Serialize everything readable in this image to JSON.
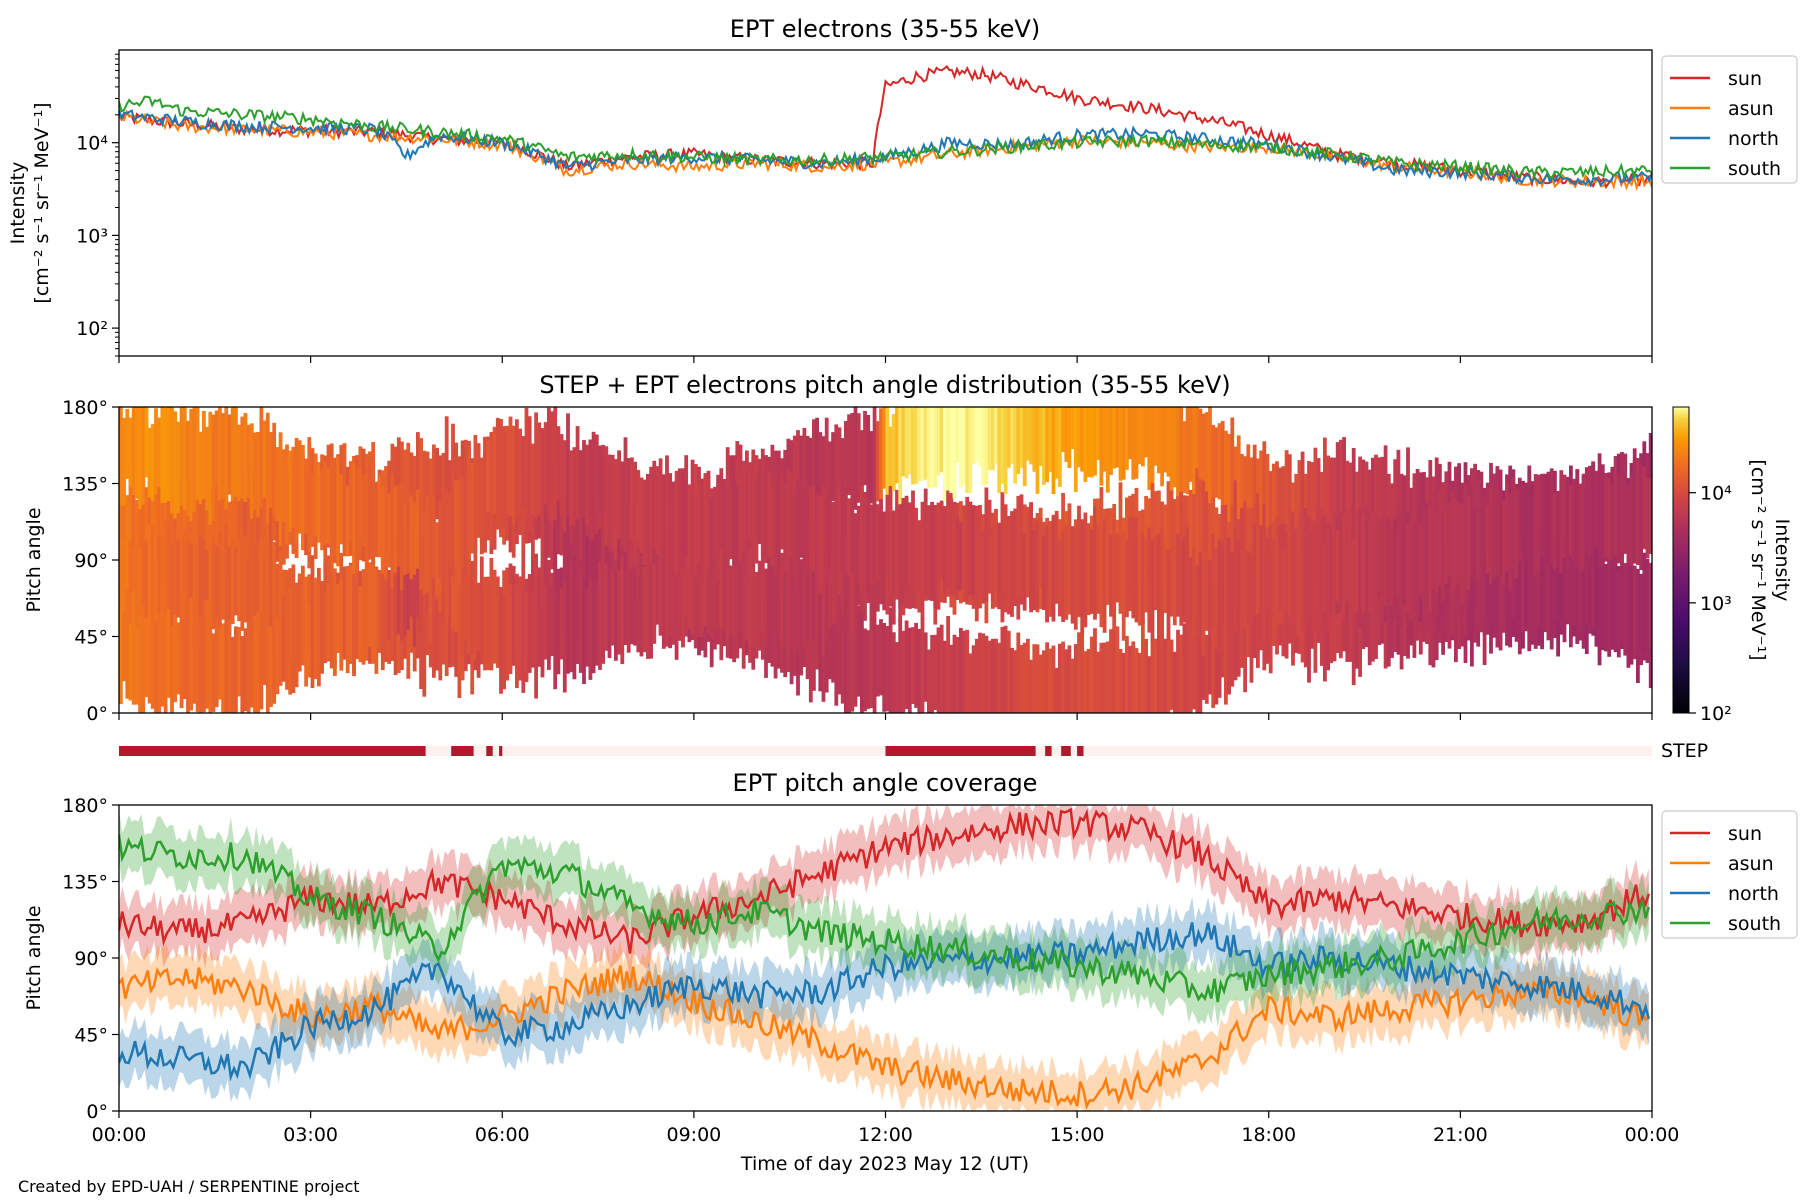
{
  "footer": "Created by EPD-UAH / SERPENTINE project",
  "colors": {
    "sun": "#d62728",
    "asun": "#ff7f0e",
    "north": "#1f77b4",
    "south": "#2ca02c",
    "step_on": "#b2182b",
    "step_off": "#fdf0ee"
  },
  "chart_data": [
    {
      "type": "line",
      "title": "EPT electrons (35-55 keV)",
      "ylabel_line1": "Intensity",
      "ylabel_line2": "[cm⁻² s⁻¹ sr⁻¹ MeV⁻¹]",
      "yscale": "log",
      "ylim": [
        50,
        100000
      ],
      "y_ticks": [
        100,
        1000,
        10000
      ],
      "y_tick_labels": [
        "10²",
        "10³",
        "10⁴"
      ],
      "legend_position": "outside-right",
      "series": [
        {
          "name": "sun",
          "x": [
            0,
            1,
            2,
            3,
            4,
            5,
            6,
            7,
            8,
            9,
            10,
            11,
            11.8,
            11.9,
            12,
            12.5,
            13,
            13.5,
            14,
            14.5,
            15,
            16,
            17,
            18,
            19,
            20,
            21,
            22,
            23,
            24
          ],
          "y": [
            19000,
            16000,
            14000,
            13500,
            13000,
            11000,
            10000,
            5500,
            7000,
            7500,
            6500,
            6000,
            6000,
            16000,
            40000,
            52000,
            58000,
            55000,
            45000,
            38000,
            30000,
            24000,
            18000,
            12000,
            7500,
            6000,
            5000,
            4200,
            3800,
            4000
          ]
        },
        {
          "name": "asun",
          "x": [
            0,
            1,
            2,
            3,
            4,
            5,
            6,
            7,
            8,
            9,
            10,
            11,
            12,
            13,
            14,
            15,
            16,
            17,
            18,
            19,
            20,
            21,
            22,
            23,
            24
          ],
          "y": [
            19000,
            15000,
            14000,
            13000,
            12000,
            11000,
            9500,
            5000,
            6000,
            5500,
            6000,
            5500,
            6000,
            7500,
            9000,
            10500,
            10000,
            9000,
            9000,
            7000,
            5500,
            4800,
            4000,
            3800,
            3800
          ]
        },
        {
          "name": "north",
          "x": [
            0,
            1,
            2,
            3,
            4,
            4.5,
            5,
            6,
            7,
            8,
            9,
            10,
            11,
            12,
            12.8,
            13,
            14,
            15,
            16,
            17,
            18,
            19,
            20,
            21,
            22,
            23,
            24
          ],
          "y": [
            20000,
            17000,
            15000,
            14500,
            14000,
            7000,
            12000,
            10000,
            5500,
            6500,
            7000,
            6500,
            6000,
            7000,
            9000,
            10000,
            9500,
            12000,
            12500,
            11000,
            9500,
            7000,
            5000,
            4800,
            4200,
            4000,
            4200
          ]
        },
        {
          "name": "south",
          "x": [
            0,
            0.5,
            1,
            2,
            3,
            4,
            5,
            6,
            7,
            8,
            9,
            10,
            11,
            12,
            13,
            14,
            15,
            16,
            17,
            18,
            19,
            20,
            21,
            22,
            23,
            24
          ],
          "y": [
            25000,
            28000,
            22000,
            20000,
            18000,
            15000,
            13000,
            11000,
            7000,
            7500,
            7000,
            6500,
            6500,
            7000,
            8000,
            9000,
            10000,
            10500,
            9500,
            9000,
            7500,
            6000,
            5500,
            4800,
            4800,
            5000
          ]
        }
      ]
    },
    {
      "type": "heatmap",
      "title": "STEP + EPT electrons pitch angle distribution (35-55 keV)",
      "ylabel": "Pitch angle",
      "ylim": [
        0,
        180
      ],
      "y_ticks": [
        0,
        45,
        90,
        135,
        180
      ],
      "y_tick_labels": [
        "0°",
        "45°",
        "90°",
        "135°",
        "180°"
      ],
      "colorbar": {
        "label_line1": "Intensity",
        "label_line2": "[cm⁻² s⁻¹ sr⁻¹ MeV⁻¹]",
        "scale": "log",
        "range": [
          100,
          60000
        ],
        "ticks": [
          100,
          1000,
          10000
        ],
        "tick_labels": [
          "10²",
          "10³",
          "10⁴"
        ],
        "colormap": "inferno"
      }
    },
    {
      "type": "timeline",
      "label": "STEP",
      "on_intervals_hours": [
        [
          0,
          4.8
        ],
        [
          5.2,
          5.55
        ],
        [
          5.75,
          5.85
        ],
        [
          5.95,
          6.0
        ],
        [
          12.0,
          14.35
        ],
        [
          14.5,
          14.6
        ],
        [
          14.75,
          14.9
        ],
        [
          15.0,
          15.1
        ]
      ]
    },
    {
      "type": "line",
      "title": "EPT pitch angle coverage",
      "ylabel": "Pitch angle",
      "ylim": [
        0,
        180
      ],
      "y_ticks": [
        0,
        45,
        90,
        135,
        180
      ],
      "y_tick_labels": [
        "0°",
        "45°",
        "90°",
        "135°",
        "180°"
      ],
      "xlabel": "Time of day 2023 May 12 (UT)",
      "x_ticks": [
        0,
        3,
        6,
        9,
        12,
        15,
        18,
        21,
        24
      ],
      "x_tick_labels": [
        "00:00",
        "03:00",
        "06:00",
        "09:00",
        "12:00",
        "15:00",
        "18:00",
        "21:00",
        "00:00"
      ],
      "legend_position": "outside-right",
      "series": [
        {
          "name": "sun",
          "x": [
            0,
            1,
            2,
            3,
            4,
            5,
            6,
            7,
            8,
            9,
            10,
            11,
            12,
            13,
            14,
            15,
            16,
            17,
            18,
            19,
            20,
            21,
            22,
            23,
            24
          ],
          "y": [
            110,
            105,
            110,
            125,
            120,
            135,
            125,
            110,
            100,
            115,
            125,
            140,
            155,
            162,
            168,
            170,
            165,
            150,
            120,
            125,
            120,
            115,
            110,
            112,
            130
          ]
        },
        {
          "name": "asun",
          "x": [
            0,
            1,
            2,
            3,
            4,
            5,
            6,
            7,
            8,
            9,
            10,
            11,
            12,
            13,
            14,
            15,
            16,
            17,
            18,
            19,
            20,
            21,
            22,
            23,
            24
          ],
          "y": [
            72,
            78,
            72,
            55,
            62,
            45,
            55,
            70,
            80,
            65,
            52,
            40,
            25,
            18,
            12,
            10,
            15,
            30,
            60,
            55,
            60,
            65,
            70,
            68,
            50
          ]
        },
        {
          "name": "north",
          "x": [
            0,
            1,
            2,
            3,
            4,
            5,
            6,
            7,
            8,
            9,
            10,
            11,
            12,
            13,
            14,
            15,
            16,
            17,
            18,
            19,
            20,
            21,
            22,
            23,
            24
          ],
          "y": [
            35,
            30,
            25,
            50,
            60,
            85,
            45,
            50,
            62,
            75,
            68,
            70,
            85,
            88,
            90,
            92,
            100,
            105,
            85,
            90,
            85,
            80,
            75,
            70,
            60
          ]
        },
        {
          "name": "south",
          "x": [
            0,
            1,
            2,
            3,
            4,
            5,
            6,
            7,
            8,
            9,
            10,
            11,
            12,
            13,
            14,
            15,
            16,
            17,
            18,
            19,
            20,
            21,
            22,
            23,
            24
          ],
          "y": [
            155,
            150,
            150,
            125,
            115,
            95,
            145,
            140,
            120,
            110,
            118,
            105,
            100,
            95,
            90,
            85,
            80,
            70,
            80,
            85,
            90,
            100,
            110,
            115,
            120
          ]
        }
      ]
    }
  ]
}
